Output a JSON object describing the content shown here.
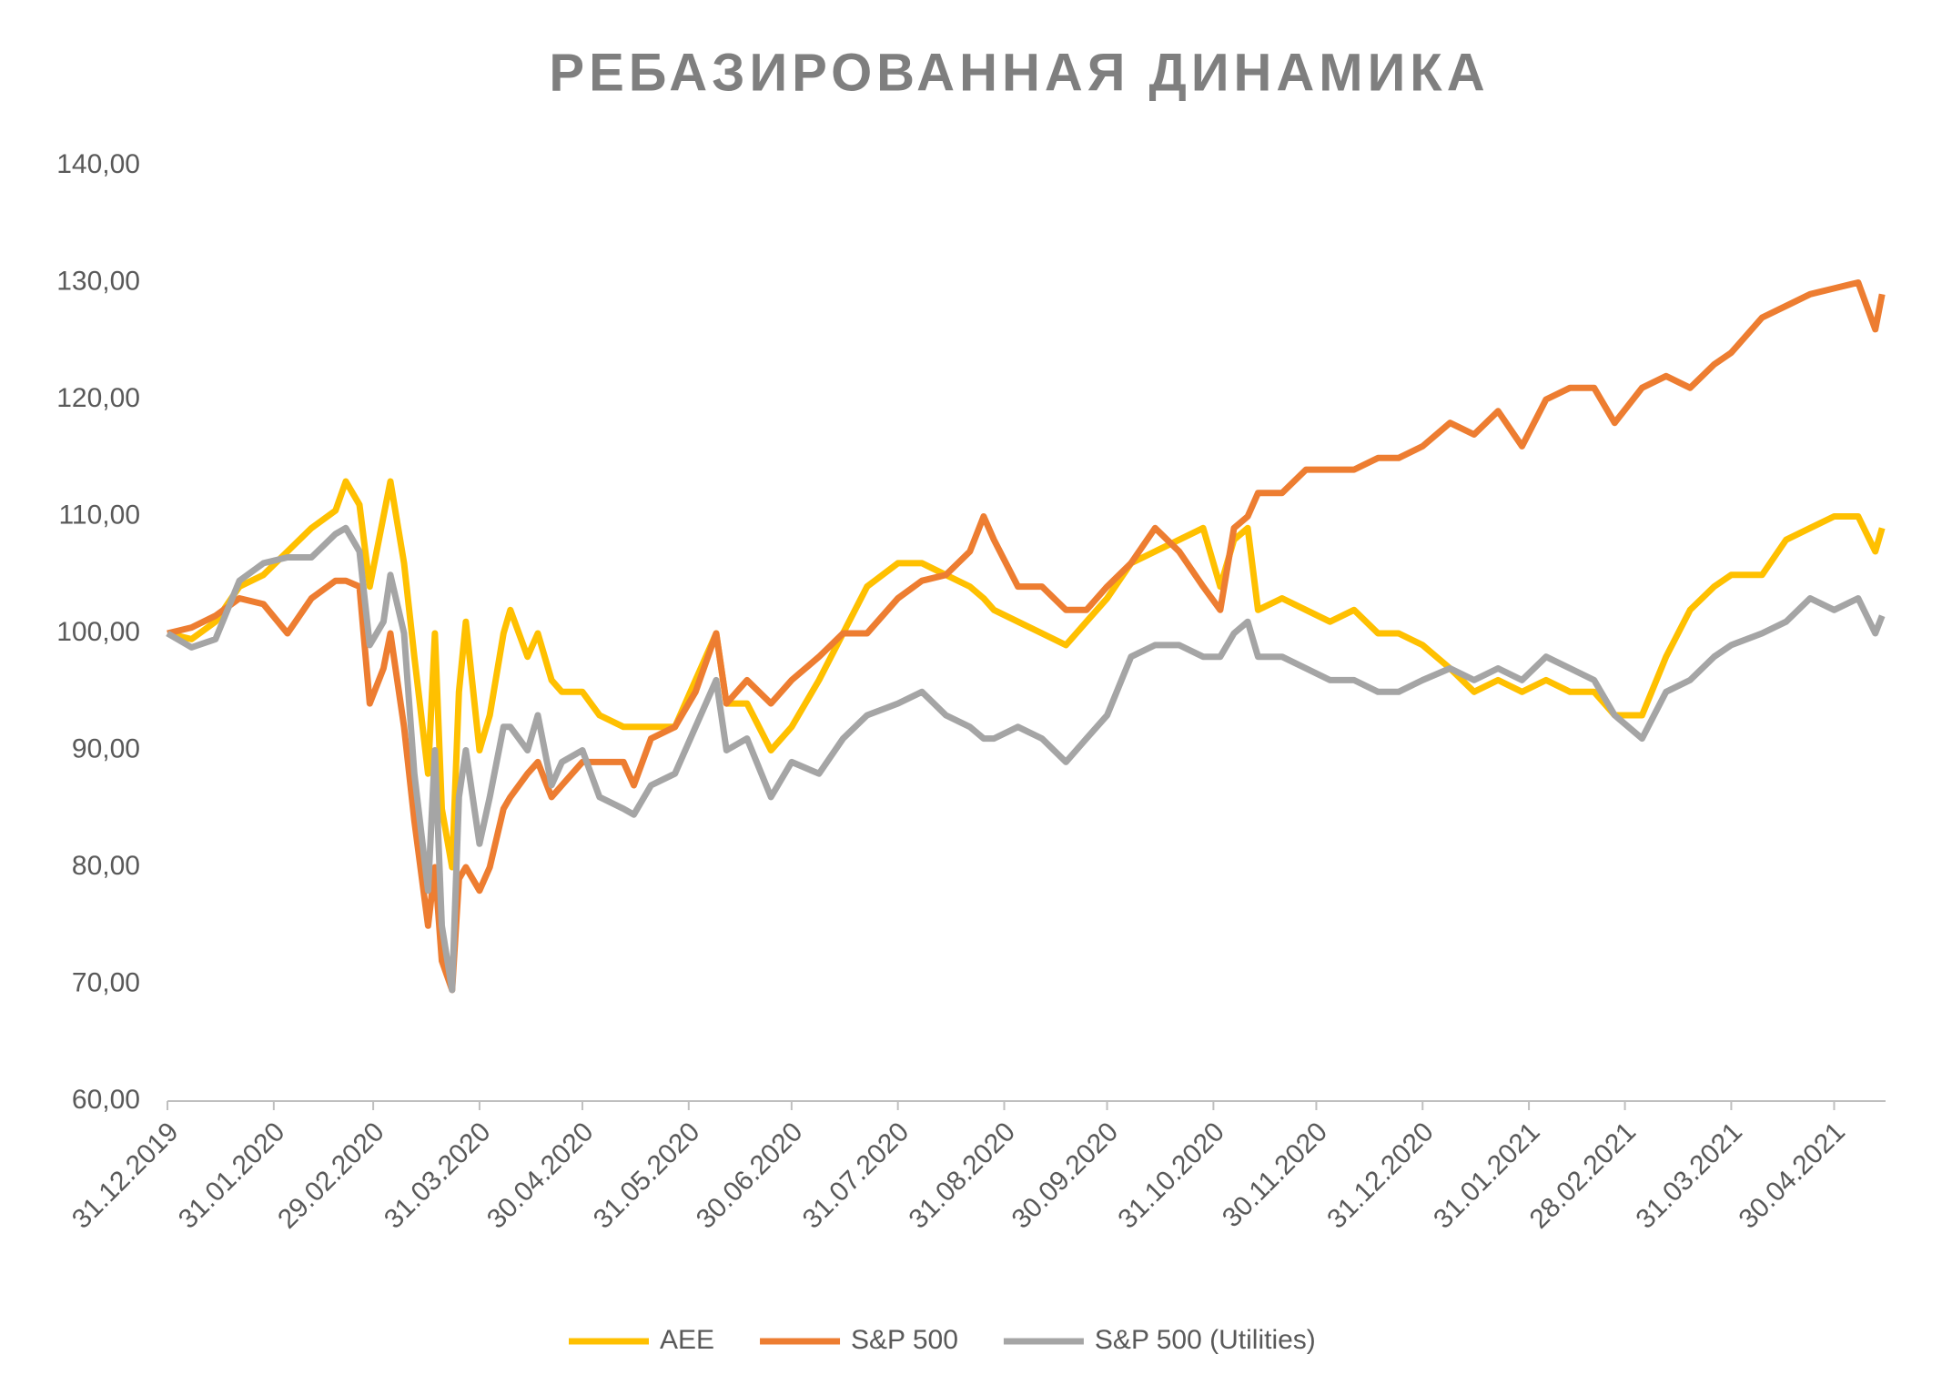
{
  "chart_data": {
    "type": "line",
    "title": "РЕБАЗИРОВАННАЯ ДИНАМИКА",
    "x": [
      "31.12.2019",
      "07.01.2020",
      "14.01.2020",
      "21.01.2020",
      "28.01.2020",
      "04.02.2020",
      "11.02.2020",
      "18.02.2020",
      "21.02.2020",
      "25.02.2020",
      "28.02.2020",
      "03.03.2020",
      "05.03.2020",
      "09.03.2020",
      "12.03.2020",
      "16.03.2020",
      "18.03.2020",
      "20.03.2020",
      "23.03.2020",
      "25.03.2020",
      "27.03.2020",
      "31.03.2020",
      "03.04.2020",
      "07.04.2020",
      "09.04.2020",
      "14.04.2020",
      "17.04.2020",
      "21.04.2020",
      "24.04.2020",
      "30.04.2020",
      "05.05.2020",
      "12.05.2020",
      "15.05.2020",
      "20.05.2020",
      "27.05.2020",
      "02.06.2020",
      "08.06.2020",
      "11.06.2020",
      "17.06.2020",
      "24.06.2020",
      "30.06.2020",
      "08.07.2020",
      "15.07.2020",
      "22.07.2020",
      "31.07.2020",
      "07.08.2020",
      "14.08.2020",
      "21.08.2020",
      "25.08.2020",
      "28.08.2020",
      "04.09.2020",
      "11.09.2020",
      "18.09.2020",
      "24.09.2020",
      "30.09.2020",
      "07.10.2020",
      "14.10.2020",
      "21.10.2020",
      "28.10.2020",
      "02.11.2020",
      "06.11.2020",
      "10.11.2020",
      "13.11.2020",
      "20.11.2020",
      "27.11.2020",
      "04.12.2020",
      "11.12.2020",
      "18.12.2020",
      "24.12.2020",
      "31.12.2020",
      "08.01.2021",
      "15.01.2021",
      "22.01.2021",
      "29.01.2021",
      "05.02.2021",
      "12.02.2021",
      "19.02.2021",
      "25.02.2021",
      "05.03.2021",
      "12.03.2021",
      "19.03.2021",
      "26.03.2021",
      "31.03.2021",
      "09.04.2021",
      "16.04.2021",
      "23.04.2021",
      "30.04.2021",
      "07.05.2021",
      "12.05.2021",
      "14.05.2021"
    ],
    "series": [
      {
        "name": "AEE",
        "color": "#ffc000",
        "values": [
          100,
          99.5,
          101,
          104,
          105,
          107,
          109,
          110.5,
          113,
          111,
          104,
          110,
          113,
          106,
          98,
          88,
          100,
          85,
          80,
          95,
          101,
          90,
          93,
          100,
          102,
          98,
          100,
          96,
          95,
          95,
          93,
          92,
          92,
          92,
          92,
          96,
          100,
          94,
          94,
          90,
          92,
          96,
          100,
          104,
          106,
          106,
          105,
          104,
          103,
          102,
          101,
          100,
          99,
          101,
          103,
          106,
          107,
          108,
          109,
          104,
          108,
          109,
          102,
          103,
          102,
          101,
          102,
          100,
          100,
          99,
          97,
          95,
          96,
          95,
          96,
          95,
          95,
          93,
          93,
          98,
          102,
          104,
          105,
          105,
          108,
          109,
          110,
          110,
          107,
          109
        ]
      },
      {
        "name": "S&P 500",
        "color": "#ed7d31",
        "values": [
          100,
          100.5,
          101.5,
          103,
          102.5,
          100,
          103,
          104.5,
          104.5,
          104,
          94,
          97,
          100,
          92,
          84,
          75,
          80,
          72,
          69.5,
          79,
          80,
          78,
          80,
          85,
          86,
          88,
          89,
          86,
          87,
          89,
          89,
          89,
          87,
          91,
          92,
          95,
          100,
          94,
          96,
          94,
          96,
          98,
          100,
          100,
          103,
          104.5,
          105,
          107,
          110,
          108,
          104,
          104,
          102,
          102,
          104,
          106,
          109,
          107,
          104,
          102,
          109,
          110,
          112,
          112,
          114,
          114,
          114,
          115,
          115,
          116,
          118,
          117,
          119,
          116,
          120,
          121,
          121,
          118,
          121,
          122,
          121,
          123,
          124,
          127,
          128,
          129,
          129.5,
          130,
          126,
          129
        ]
      },
      {
        "name": "S&P 500 (Utilities)",
        "color": "#a5a5a5",
        "values": [
          100,
          98.8,
          99.5,
          104.5,
          106,
          106.5,
          106.5,
          108.5,
          109,
          107,
          99,
          101,
          105,
          100,
          88,
          78,
          90,
          75,
          69.5,
          86,
          90,
          82,
          86,
          92,
          92,
          90,
          93,
          87,
          89,
          90,
          86,
          85,
          84.5,
          87,
          88,
          92,
          96,
          90,
          91,
          86,
          89,
          88,
          91,
          93,
          94,
          95,
          93,
          92,
          91,
          91,
          92,
          91,
          89,
          91,
          93,
          98,
          99,
          99,
          98,
          98,
          100,
          101,
          98,
          98,
          97,
          96,
          96,
          95,
          95,
          96,
          97,
          96,
          97,
          96,
          98,
          97,
          96,
          93,
          91,
          95,
          96,
          98,
          99,
          100,
          101,
          103,
          102,
          103,
          100,
          101.5
        ]
      }
    ],
    "xlim": [
      "31.12.2019",
      "15.05.2021"
    ],
    "xticks": [
      "31.12.2019",
      "31.01.2020",
      "29.02.2020",
      "31.03.2020",
      "30.04.2020",
      "31.05.2020",
      "30.06.2020",
      "31.07.2020",
      "31.08.2020",
      "30.09.2020",
      "31.10.2020",
      "30.11.2020",
      "31.12.2020",
      "31.01.2021",
      "28.02.2021",
      "31.03.2021",
      "30.04.2021"
    ],
    "ylim": [
      60,
      140
    ],
    "yticks": [
      {
        "value": 60,
        "label": "60,00"
      },
      {
        "value": 70,
        "label": "70,00"
      },
      {
        "value": 80,
        "label": "80,00"
      },
      {
        "value": 90,
        "label": "90,00"
      },
      {
        "value": 100,
        "label": "100,00"
      },
      {
        "value": 110,
        "label": "110,00"
      },
      {
        "value": 120,
        "label": "120,00"
      },
      {
        "value": 130,
        "label": "130,00"
      },
      {
        "value": 140,
        "label": "140,00"
      }
    ],
    "grid": false,
    "legend": "bottom"
  }
}
